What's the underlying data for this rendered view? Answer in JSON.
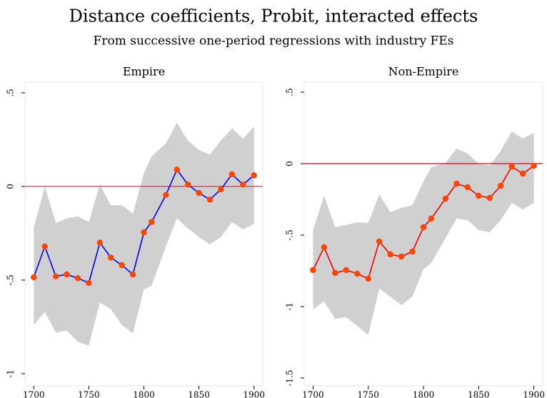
{
  "title": "Distance coefficients, Probit, interacted effects",
  "subtitle": "From successive one-period regressions with industry FEs",
  "chart_data": [
    {
      "type": "line",
      "title": "Empire",
      "x": [
        1700,
        1710,
        1720,
        1730,
        1740,
        1750,
        1760,
        1770,
        1780,
        1790,
        1800,
        1807,
        1820,
        1830,
        1840,
        1850,
        1860,
        1870,
        1880,
        1890,
        1900
      ],
      "values": [
        -0.485,
        -0.32,
        -0.48,
        -0.47,
        -0.49,
        -0.515,
        -0.3,
        -0.38,
        -0.42,
        -0.47,
        -0.245,
        -0.19,
        -0.045,
        0.09,
        0.01,
        -0.035,
        -0.07,
        -0.015,
        0.065,
        0.01,
        0.06
      ],
      "upper": [
        -0.22,
        0,
        -0.195,
        -0.17,
        -0.16,
        -0.19,
        0.01,
        -0.1,
        -0.1,
        -0.145,
        0.07,
        0.16,
        0.23,
        0.34,
        0.245,
        0.195,
        0.17,
        0.245,
        0.31,
        0.255,
        0.32
      ],
      "lower": [
        -0.74,
        -0.67,
        -0.78,
        -0.77,
        -0.83,
        -0.85,
        -0.62,
        -0.655,
        -0.74,
        -0.785,
        -0.55,
        -0.53,
        -0.32,
        -0.17,
        -0.225,
        -0.27,
        -0.31,
        -0.27,
        -0.19,
        -0.23,
        -0.2
      ],
      "color": "#0000ee",
      "marker_color": "#ff4500",
      "band_color": "#d0d0d0",
      "refline": 0,
      "refline_color": "#b0304a",
      "xlim": [
        1692,
        1908
      ],
      "xticks": [
        1700,
        1750,
        1800,
        1850,
        1900
      ],
      "ylim": [
        -1.065,
        0.557
      ],
      "yticks": [
        {
          "value": 0.5,
          "label": ".5"
        },
        0,
        {
          "value": -0.5,
          "label": "-.5"
        },
        {
          "value": -1,
          "label": "-1"
        }
      ]
    },
    {
      "type": "line",
      "title": "Non-Empire",
      "x": [
        1700,
        1710,
        1720,
        1730,
        1740,
        1750,
        1760,
        1770,
        1780,
        1790,
        1800,
        1807,
        1820,
        1830,
        1840,
        1850,
        1860,
        1870,
        1880,
        1890,
        1900
      ],
      "values": [
        -0.745,
        -0.585,
        -0.765,
        -0.745,
        -0.77,
        -0.805,
        -0.545,
        -0.635,
        -0.65,
        -0.615,
        -0.445,
        -0.385,
        -0.245,
        -0.14,
        -0.165,
        -0.225,
        -0.24,
        -0.155,
        -0.02,
        -0.07,
        -0.015
      ],
      "upper": [
        -0.465,
        -0.225,
        -0.445,
        -0.43,
        -0.41,
        -0.415,
        -0.215,
        -0.34,
        -0.31,
        -0.29,
        -0.125,
        -0.025,
        0.005,
        0.105,
        0.07,
        0,
        -0.015,
        0.09,
        0.225,
        0.175,
        0.215
      ],
      "lower": [
        -1.02,
        -0.965,
        -1.085,
        -1.075,
        -1.135,
        -1.2,
        -0.875,
        -0.93,
        -0.99,
        -0.93,
        -0.74,
        -0.695,
        -0.52,
        -0.385,
        -0.395,
        -0.465,
        -0.48,
        -0.395,
        -0.275,
        -0.32,
        -0.275
      ],
      "color": "#ee0000",
      "marker_color": "#ff4500",
      "band_color": "#d0d0d0",
      "refline": 0,
      "refline_color": "#cc0020",
      "xlim": [
        1692,
        1908
      ],
      "xticks": [
        1700,
        1750,
        1800,
        1850,
        1900
      ],
      "ylim": [
        -1.555,
        0.57
      ],
      "yticks": [
        {
          "value": 0.5,
          "label": ".5"
        },
        0,
        {
          "value": -0.5,
          "label": "-.5"
        },
        {
          "value": -1,
          "label": "-1"
        },
        {
          "value": -1.5,
          "label": "-1.5"
        }
      ]
    }
  ]
}
